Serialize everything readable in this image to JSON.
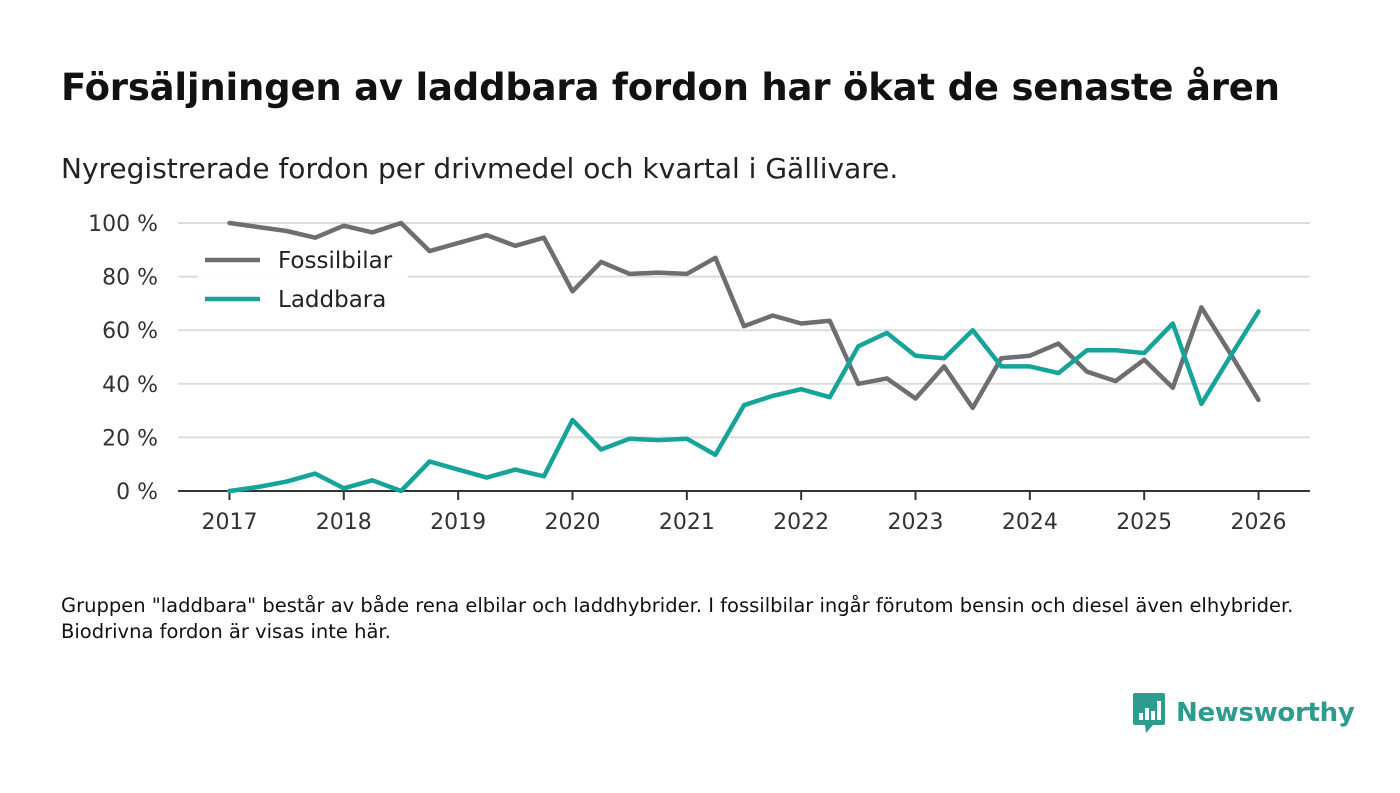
{
  "header": {
    "title": "Försäljningen av laddbara fordon har ökat de senaste åren",
    "subtitle": "Nyregistrerade fordon per drivmedel och kvartal i Gällivare."
  },
  "footer": {
    "note": "Gruppen \"laddbara\" består av både rena elbilar och laddhybrider. I fossilbilar ingår förutom bensin och diesel även elhybrider. Biodrivna fordon är visas inte här.",
    "brand": "Newsworthy"
  },
  "colors": {
    "fossil": "#6d6d72",
    "laddbara": "#16a39a",
    "grid": "#dcdcdc",
    "axis": "#333333",
    "brand": "#2b9c8d"
  },
  "chart_data": {
    "type": "line",
    "title": "Försäljningen av laddbara fordon har ökat de senaste åren",
    "subtitle": "Nyregistrerade fordon per drivmedel och kvartal i Gällivare.",
    "xlabel": "",
    "ylabel": "",
    "xlim": [
      2016.55,
      2026.45
    ],
    "ylim": [
      0,
      100
    ],
    "x_ticks": [
      2017,
      2018,
      2019,
      2020,
      2021,
      2022,
      2023,
      2024,
      2025,
      2026
    ],
    "x_tick_labels": [
      "2017",
      "2018",
      "2019",
      "2020",
      "2021",
      "2022",
      "2023",
      "2024",
      "2025",
      "2026"
    ],
    "y_ticks": [
      0,
      20,
      40,
      60,
      80,
      100
    ],
    "y_tick_labels": [
      "0 %",
      "20 %",
      "40 %",
      "60 %",
      "80 %",
      "100 %"
    ],
    "grid": true,
    "legend_position": "top-left",
    "x": [
      2017.0,
      2017.25,
      2017.5,
      2017.75,
      2018.0,
      2018.25,
      2018.5,
      2018.75,
      2019.0,
      2019.25,
      2019.5,
      2019.75,
      2020.0,
      2020.25,
      2020.5,
      2020.75,
      2021.0,
      2021.25,
      2021.5,
      2021.75,
      2022.0,
      2022.25,
      2022.5,
      2022.75,
      2023.0,
      2023.25,
      2023.5,
      2023.75,
      2024.0,
      2024.25,
      2024.5,
      2024.75,
      2025.0,
      2025.25,
      2025.5,
      2025.75,
      2026.0
    ],
    "series": [
      {
        "name": "Fossilbilar",
        "color": "#6d6d72",
        "values": [
          100,
          98.5,
          97,
          94.5,
          99,
          96.5,
          100,
          89.5,
          92.5,
          95.5,
          91.5,
          94.5,
          74.5,
          85.5,
          81,
          81.5,
          81,
          87,
          61.5,
          65.5,
          62.5,
          63.5,
          40,
          42,
          34.5,
          46.5,
          31,
          49.5,
          50.5,
          55,
          44.5,
          41,
          49,
          38.5,
          68.5,
          51.5,
          34
        ]
      },
      {
        "name": "Laddbara",
        "color": "#16a39a",
        "values": [
          0,
          1.5,
          3.5,
          6.5,
          1,
          4,
          0,
          11,
          8,
          5,
          8,
          5.5,
          26.5,
          15.5,
          19.5,
          19,
          19.5,
          13.5,
          32,
          35.5,
          38,
          35,
          54,
          59,
          50.5,
          49.5,
          60,
          46.5,
          46.5,
          44,
          52.5,
          52.5,
          51.5,
          62.5,
          32.5,
          50,
          67
        ]
      }
    ]
  }
}
